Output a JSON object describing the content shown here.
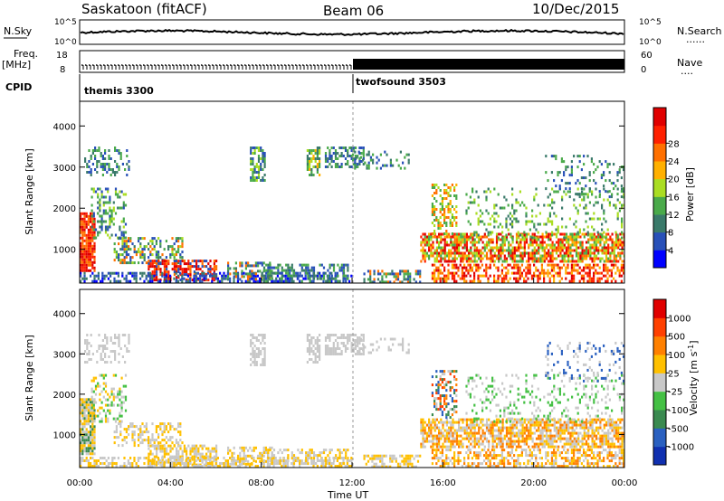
{
  "header": {
    "station": "Saskatoon (fitACF)",
    "beam": "Beam 06",
    "date": "10/Dec/2015"
  },
  "noise_panel": {
    "left_label": "N.Sky",
    "right_label": "N.Search",
    "left_ticks": [
      "10^5",
      "10^0"
    ],
    "right_ticks": [
      "10^5",
      "10^0"
    ],
    "right_dots": "......"
  },
  "freq_panel": {
    "left_label": "Freq.",
    "left_unit": "[MHz]",
    "right_label": "Nave",
    "left_ticks": [
      "18",
      "8"
    ],
    "right_ticks": [
      "60",
      "0"
    ],
    "right_dots": "...."
  },
  "cpid": {
    "label": "CPID",
    "programs": [
      {
        "name": "themis 3300",
        "start_hour": 0
      },
      {
        "name": "twofsound 3503",
        "start_hour": 12
      }
    ]
  },
  "chart_data": [
    {
      "type": "heatmap",
      "panel": "power",
      "ylabel": "Slant Range [km]",
      "yticks": [
        1000,
        2000,
        3000,
        4000
      ],
      "ylim": [
        180,
        4600
      ],
      "xlim": [
        0,
        24
      ],
      "colorbar_label": "Power [dB]",
      "colorbar_ticks": [
        "4",
        "8",
        "12",
        "16",
        "20",
        "24",
        "28"
      ],
      "colorbar_colors": [
        "#0000ff",
        "#2850b8",
        "#3a7a6a",
        "#4aaa4a",
        "#aadd22",
        "#ffb000",
        "#ff7000",
        "#ff2000",
        "#e00000"
      ]
    },
    {
      "type": "heatmap",
      "panel": "velocity",
      "ylabel": "Slant Range [km]",
      "yticks": [
        1000,
        2000,
        3000,
        4000
      ],
      "ylim": [
        180,
        4600
      ],
      "xlim": [
        0,
        24
      ],
      "xlabel": "Time UT",
      "xticks": [
        "00:00",
        "04:00",
        "08:00",
        "12:00",
        "16:00",
        "20:00",
        "00:00"
      ],
      "colorbar_label": "Velocity [m s",
      "colorbar_label_sup": "-1",
      "colorbar_label_end": "]",
      "colorbar_ticks": [
        "1000",
        "500",
        "100",
        "25",
        "-25",
        "-100",
        "-500",
        "-1000"
      ],
      "colorbar_colors": [
        "#1030b0",
        "#2a60c0",
        "#3a8a50",
        "#44c044",
        "#c8c8c8",
        "#ffc000",
        "#ff8000",
        "#ff4000",
        "#e00000"
      ]
    }
  ],
  "colors": {
    "ground_scatter": "#bdbdbd"
  }
}
